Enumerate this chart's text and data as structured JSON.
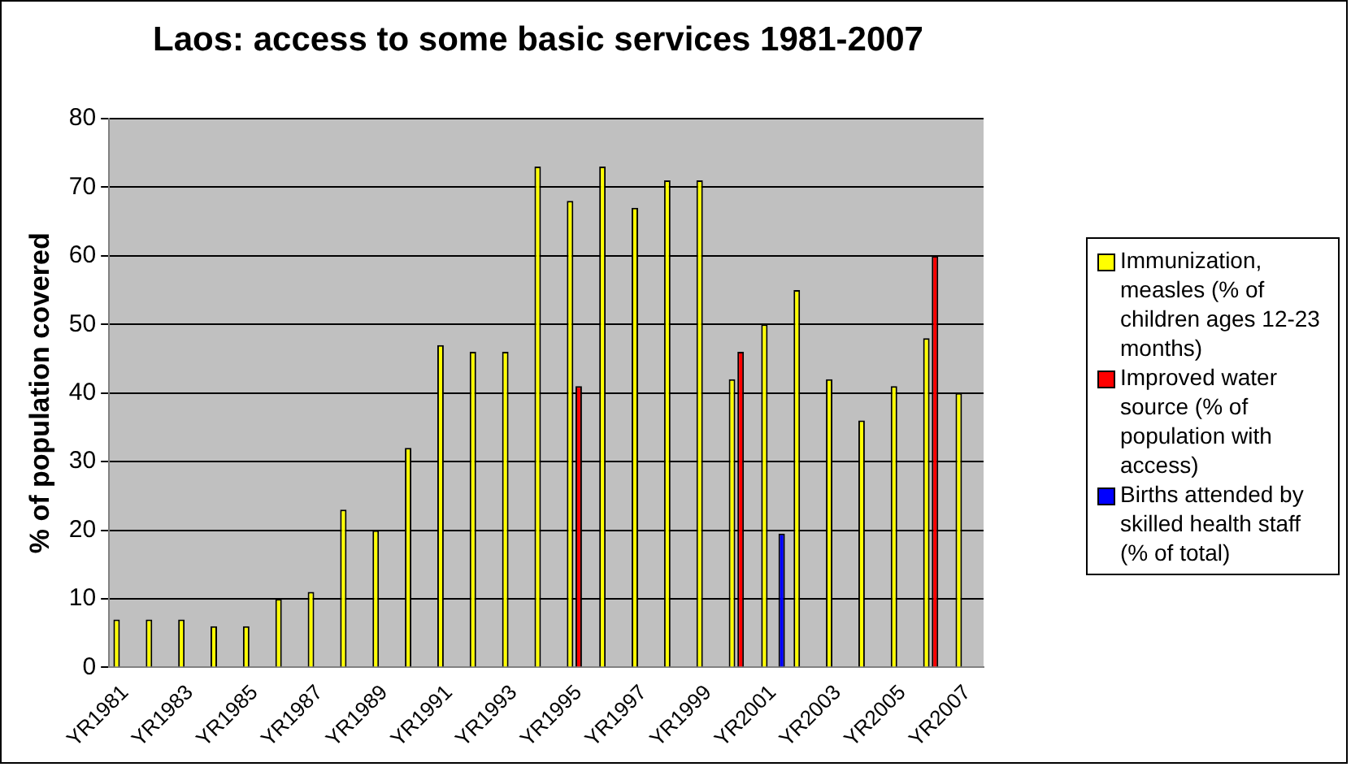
{
  "chart_data": {
    "type": "bar",
    "title": "Laos: access to some basic services 1981-2007",
    "ylabel": "% of population covered",
    "categories": [
      "YR1981",
      null,
      "YR1983",
      null,
      "YR1985",
      null,
      "YR1987",
      null,
      "YR1989",
      null,
      "YR1991",
      null,
      "YR1993",
      null,
      "YR1995",
      null,
      "YR1997",
      null,
      "YR1999",
      null,
      "YR2001",
      null,
      "YR2003",
      null,
      "YR2005",
      null,
      "YR2007"
    ],
    "series": [
      {
        "name": "Immunization, measles (% of children ages 12-23 months)",
        "color": "#ffff00",
        "values": [
          7,
          7,
          7,
          6,
          6,
          10,
          11,
          23,
          20,
          32,
          47,
          46,
          46,
          73,
          68,
          73,
          67,
          71,
          71,
          42,
          50,
          55,
          42,
          36,
          41,
          48,
          40
        ]
      },
      {
        "name": "Improved water source (% of population with access)",
        "color": "#ff0000",
        "values": [
          null,
          null,
          null,
          null,
          null,
          null,
          null,
          null,
          null,
          null,
          null,
          null,
          null,
          null,
          41,
          null,
          null,
          null,
          null,
          46,
          null,
          null,
          null,
          null,
          null,
          60,
          null
        ]
      },
      {
        "name": "Births attended by skilled health staff (% of total)",
        "color": "#0000ff",
        "values": [
          null,
          null,
          null,
          null,
          null,
          null,
          null,
          null,
          null,
          null,
          null,
          null,
          null,
          null,
          null,
          null,
          null,
          null,
          null,
          null,
          19.5,
          null,
          null,
          null,
          null,
          null,
          null
        ]
      }
    ],
    "ylim": [
      0,
      80
    ],
    "yticks": [
      0,
      10,
      20,
      30,
      40,
      50,
      60,
      70,
      80
    ],
    "grid": "y",
    "legend": "right"
  }
}
